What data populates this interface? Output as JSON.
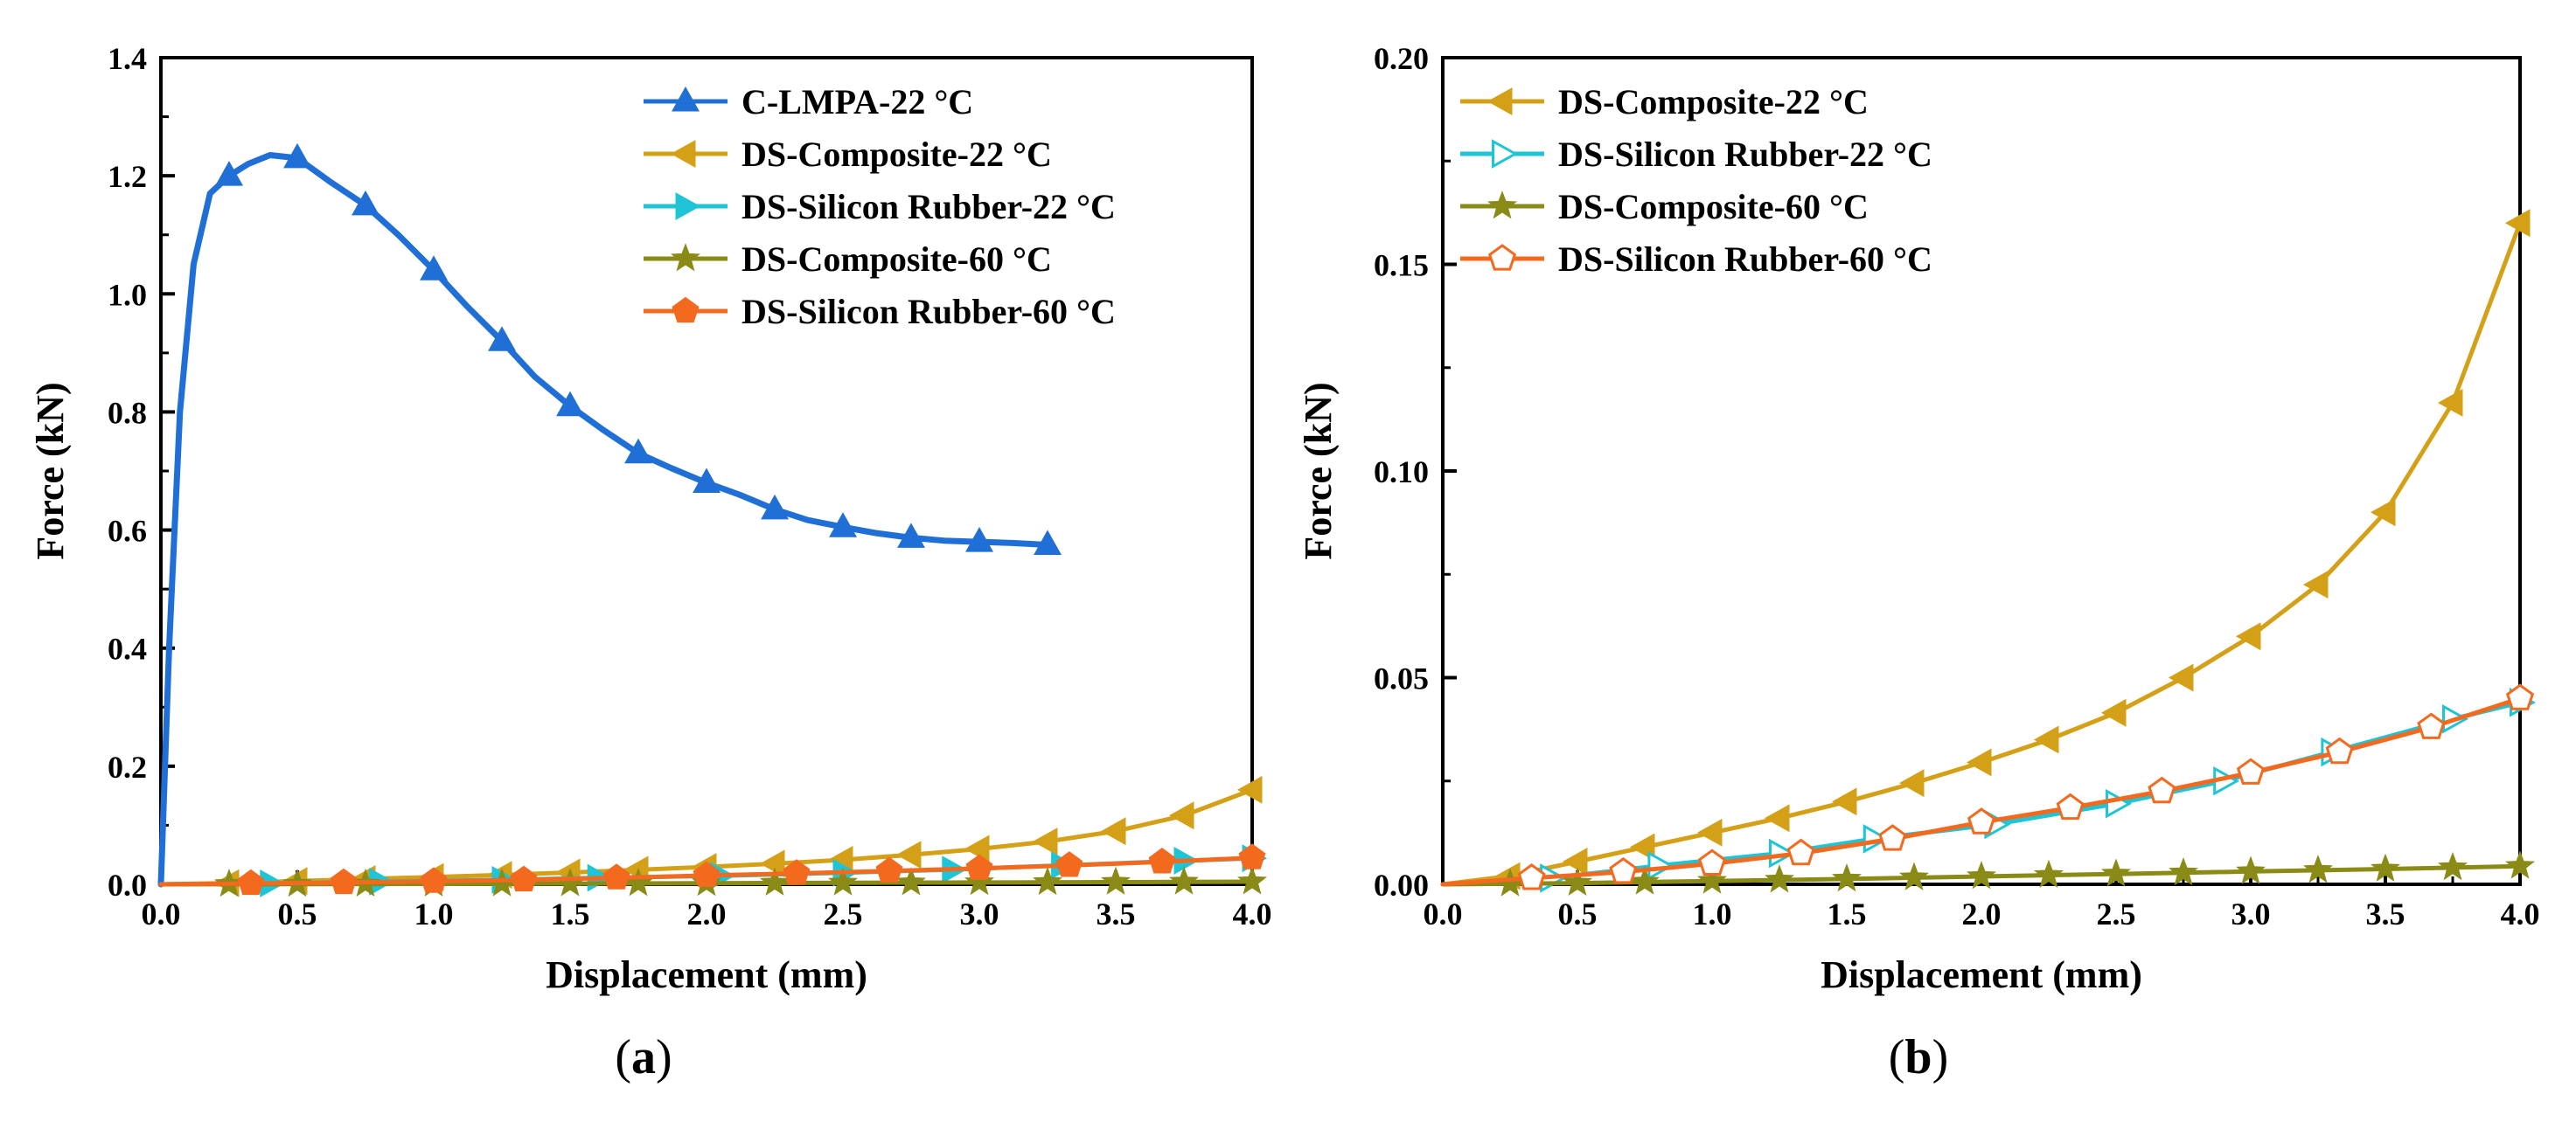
{
  "chart_data": [
    {
      "panel": "a",
      "panel_label": "(a)",
      "panel_label_parts": [
        "(",
        "a",
        ")"
      ],
      "type": "line",
      "title": "",
      "xlabel": "Displacement (mm)",
      "ylabel": "Force (kN)",
      "xlim": [
        0,
        4.0
      ],
      "ylim": [
        0,
        1.4
      ],
      "xticks": [
        "0.0",
        "0.5",
        "1.0",
        "1.5",
        "2.0",
        "2.5",
        "3.0",
        "3.5",
        "4.0"
      ],
      "yticks": [
        "0.0",
        "0.2",
        "0.4",
        "0.6",
        "0.8",
        "1.0",
        "1.2",
        "1.4"
      ],
      "legend_position": "top-right",
      "series": [
        {
          "name": "C-LMPA-22 °C",
          "color": "#1F6FD6",
          "marker": "triangle-up",
          "marker_fill": "filled",
          "x": [
            0,
            0.03,
            0.07,
            0.12,
            0.18,
            0.25,
            0.32,
            0.4,
            0.5,
            0.62,
            0.75,
            0.87,
            1.0,
            1.12,
            1.25,
            1.37,
            1.5,
            1.62,
            1.75,
            1.87,
            2.0,
            2.12,
            2.25,
            2.37,
            2.5,
            2.62,
            2.75,
            2.87,
            3.0,
            3.12,
            3.25
          ],
          "y": [
            0,
            0.4,
            0.8,
            1.05,
            1.17,
            1.2,
            1.22,
            1.235,
            1.23,
            1.19,
            1.15,
            1.1,
            1.04,
            0.98,
            0.92,
            0.86,
            0.81,
            0.77,
            0.73,
            0.705,
            0.68,
            0.66,
            0.635,
            0.617,
            0.605,
            0.595,
            0.587,
            0.582,
            0.58,
            0.578,
            0.575
          ],
          "marker_x": [
            0.25,
            0.5,
            0.75,
            1.0,
            1.25,
            1.5,
            1.75,
            2.0,
            2.25,
            2.5,
            2.75,
            3.0,
            3.25
          ]
        },
        {
          "name": "DS-Composite-22 °C",
          "color": "#D4A017",
          "marker": "triangle-left",
          "marker_fill": "filled",
          "x": [
            0,
            0.25,
            0.5,
            0.75,
            1.0,
            1.25,
            1.5,
            1.75,
            2.0,
            2.25,
            2.5,
            2.75,
            3.0,
            3.25,
            3.5,
            3.75,
            4.0
          ],
          "y": [
            0,
            0.002,
            0.0055,
            0.009,
            0.0125,
            0.016,
            0.02,
            0.0245,
            0.0295,
            0.035,
            0.0415,
            0.05,
            0.06,
            0.0725,
            0.09,
            0.1165,
            0.16
          ],
          "marker_x": [
            0.25,
            0.5,
            0.75,
            1.0,
            1.25,
            1.5,
            1.75,
            2.0,
            2.25,
            2.5,
            2.75,
            3.0,
            3.25,
            3.5,
            3.75,
            4.0
          ]
        },
        {
          "name": "DS-Silicon Rubber-22 °C",
          "color": "#1FC4D6",
          "marker": "triangle-right",
          "marker_fill": "filled",
          "x": [
            0,
            0.4,
            0.8,
            1.25,
            1.6,
            2.05,
            2.5,
            2.9,
            3.3,
            3.75,
            4.0
          ],
          "y": [
            0,
            0.0015,
            0.0045,
            0.0075,
            0.011,
            0.0145,
            0.0195,
            0.025,
            0.032,
            0.04,
            0.044
          ],
          "marker_x": [
            0.4,
            0.8,
            1.25,
            1.6,
            2.05,
            2.5,
            2.9,
            3.3,
            3.75,
            4.0
          ]
        },
        {
          "name": "DS-Composite-60 °C",
          "color": "#8A8A16",
          "marker": "star",
          "marker_fill": "filled",
          "x": [
            0,
            0.5,
            1.0,
            1.5,
            2.0,
            2.5,
            3.0,
            3.5,
            4.0
          ],
          "y": [
            0,
            0.0003,
            0.0008,
            0.0013,
            0.0019,
            0.0025,
            0.0031,
            0.0037,
            0.0044
          ],
          "marker_x": [
            0.25,
            0.5,
            0.75,
            1.0,
            1.25,
            1.5,
            1.75,
            2.0,
            2.25,
            2.5,
            2.75,
            3.0,
            3.25,
            3.5,
            3.75,
            4.0
          ]
        },
        {
          "name": "DS-Silicon Rubber-60 °C",
          "color": "#F36A1F",
          "marker": "pentagon",
          "marker_fill": "filled",
          "x": [
            0,
            0.33,
            0.67,
            1.0,
            1.33,
            1.67,
            2.0,
            2.33,
            2.67,
            3.0,
            3.33,
            3.67,
            4.0
          ],
          "y": [
            0,
            0.0015,
            0.003,
            0.005,
            0.0075,
            0.011,
            0.015,
            0.0185,
            0.0225,
            0.027,
            0.032,
            0.038,
            0.045
          ],
          "marker_x": [
            0.33,
            0.67,
            1.0,
            1.33,
            1.67,
            2.0,
            2.33,
            2.67,
            3.0,
            3.33,
            3.67,
            4.0
          ]
        }
      ]
    },
    {
      "panel": "b",
      "panel_label": "(b)",
      "panel_label_parts": [
        "(",
        "b",
        ")"
      ],
      "type": "line",
      "title": "",
      "xlabel": "Displacement (mm)",
      "ylabel": "Force (kN)",
      "xlim": [
        0,
        4.0
      ],
      "ylim": [
        0,
        0.2
      ],
      "xticks": [
        "0.0",
        "0.5",
        "1.0",
        "1.5",
        "2.0",
        "2.5",
        "3.0",
        "3.5",
        "4.0"
      ],
      "yticks": [
        "0.00",
        "0.05",
        "0.10",
        "0.15",
        "0.20"
      ],
      "legend_position": "top-left",
      "series": [
        {
          "name": "DS-Composite-22 °C",
          "color": "#D4A017",
          "marker": "triangle-left",
          "marker_fill": "filled",
          "x": [
            0,
            0.25,
            0.5,
            0.75,
            1.0,
            1.25,
            1.5,
            1.75,
            2.0,
            2.25,
            2.5,
            2.75,
            3.0,
            3.25,
            3.5,
            3.75,
            4.0
          ],
          "y": [
            0,
            0.002,
            0.0055,
            0.009,
            0.0125,
            0.016,
            0.02,
            0.0245,
            0.0295,
            0.035,
            0.0415,
            0.05,
            0.06,
            0.0725,
            0.09,
            0.1165,
            0.16
          ],
          "marker_x": [
            0.25,
            0.5,
            0.75,
            1.0,
            1.25,
            1.5,
            1.75,
            2.0,
            2.25,
            2.5,
            2.75,
            3.0,
            3.25,
            3.5,
            3.75,
            4.0
          ]
        },
        {
          "name": "DS-Silicon Rubber-22 °C",
          "color": "#1FC4D6",
          "marker": "triangle-right",
          "marker_fill": "hollow",
          "x": [
            0,
            0.4,
            0.8,
            1.25,
            1.6,
            2.05,
            2.5,
            2.9,
            3.3,
            3.75,
            4.0
          ],
          "y": [
            0,
            0.0015,
            0.0045,
            0.0075,
            0.011,
            0.0145,
            0.0195,
            0.025,
            0.032,
            0.04,
            0.044
          ],
          "marker_x": [
            0.4,
            0.8,
            1.25,
            1.6,
            2.05,
            2.5,
            2.9,
            3.3,
            3.75,
            4.0
          ]
        },
        {
          "name": "DS-Composite-60 °C",
          "color": "#8A8A16",
          "marker": "star",
          "marker_fill": "filled",
          "x": [
            0,
            0.5,
            1.0,
            1.5,
            2.0,
            2.5,
            3.0,
            3.5,
            4.0
          ],
          "y": [
            0,
            0.0003,
            0.0008,
            0.0013,
            0.0019,
            0.0025,
            0.0031,
            0.0037,
            0.0044
          ],
          "marker_x": [
            0.25,
            0.5,
            0.75,
            1.0,
            1.25,
            1.5,
            1.75,
            2.0,
            2.25,
            2.5,
            2.75,
            3.0,
            3.25,
            3.5,
            3.75,
            4.0
          ]
        },
        {
          "name": "DS-Silicon Rubber-60 °C",
          "color": "#F36A1F",
          "marker": "pentagon",
          "marker_fill": "hollow",
          "x": [
            0,
            0.33,
            0.67,
            1.0,
            1.33,
            1.67,
            2.0,
            2.33,
            2.67,
            3.0,
            3.33,
            3.67,
            4.0
          ],
          "y": [
            0,
            0.0015,
            0.003,
            0.005,
            0.0075,
            0.011,
            0.015,
            0.0185,
            0.0225,
            0.027,
            0.032,
            0.038,
            0.045
          ],
          "marker_x": [
            0.33,
            0.67,
            1.0,
            1.33,
            1.67,
            2.0,
            2.33,
            2.67,
            3.0,
            3.33,
            3.67,
            4.0
          ]
        }
      ]
    }
  ]
}
